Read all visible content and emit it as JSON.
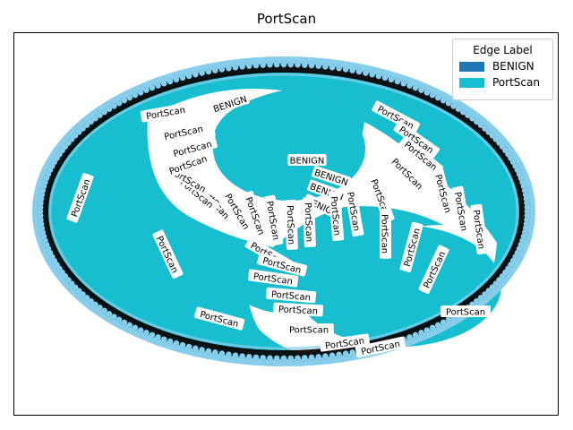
{
  "title": "PortScan",
  "legend": {
    "title": "Edge Label",
    "items": [
      {
        "label": "BENIGN",
        "color": "#1f77b4"
      },
      {
        "label": "PortScan",
        "color": "#17becf"
      }
    ]
  },
  "colors": {
    "node": "#87ceeb",
    "node_outline": "#000000",
    "portscan_edge": "#17becf",
    "benign_edge": "#1f77b4"
  },
  "edge_labels": {
    "benign": "BENIGN",
    "portscan": "PortScan"
  }
}
